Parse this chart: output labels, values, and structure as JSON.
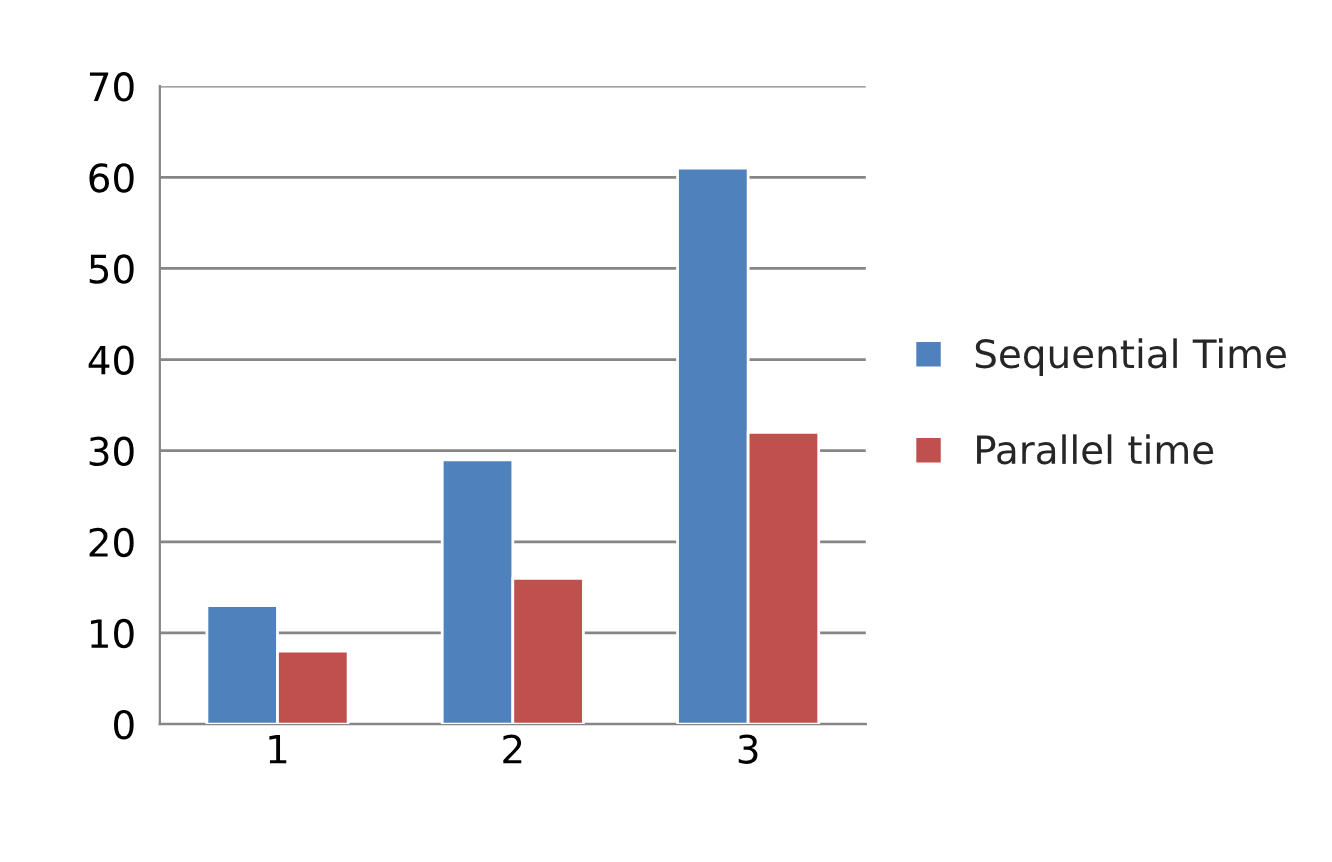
{
  "chart_data": {
    "type": "bar",
    "categories": [
      "1",
      "2",
      "3"
    ],
    "series": [
      {
        "name": "Sequential Time",
        "color": "#4f81bd",
        "values": [
          13,
          29,
          61
        ]
      },
      {
        "name": "Parallel time",
        "color": "#c0504d",
        "values": [
          8,
          16,
          32
        ]
      }
    ],
    "ylim": [
      0,
      70
    ],
    "yticks": [
      0,
      10,
      20,
      30,
      40,
      50,
      60,
      70
    ],
    "grid": "y",
    "legend": "right"
  }
}
